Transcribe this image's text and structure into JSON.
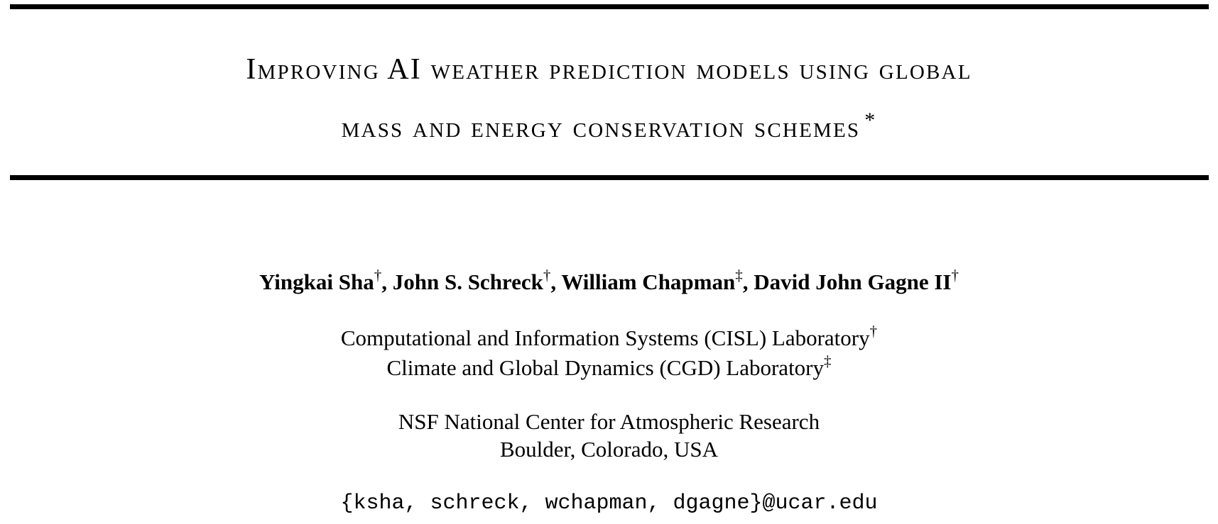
{
  "title": {
    "line1": "Improving AI weather prediction models using global",
    "line2": "mass and energy conservation schemes",
    "footnote_mark": "*"
  },
  "authors": [
    {
      "name": "Yingkai Sha",
      "mark": "†",
      "sep": ", "
    },
    {
      "name": "John S. Schreck",
      "mark": "†",
      "sep": ", "
    },
    {
      "name": "William Chapman",
      "mark": "‡",
      "sep": ", "
    },
    {
      "name": "David John Gagne II",
      "mark": "†",
      "sep": ""
    }
  ],
  "affiliations": [
    {
      "text": "Computational and Information Systems (CISL) Laboratory",
      "mark": "†"
    },
    {
      "text": "Climate and Global Dynamics (CGD) Laboratory",
      "mark": "‡"
    }
  ],
  "institution": {
    "name": "NSF National Center for Atmospheric Research",
    "location": "Boulder, Colorado, USA"
  },
  "email": "{ksha, schreck, wchapman, dgagne}@ucar.edu"
}
